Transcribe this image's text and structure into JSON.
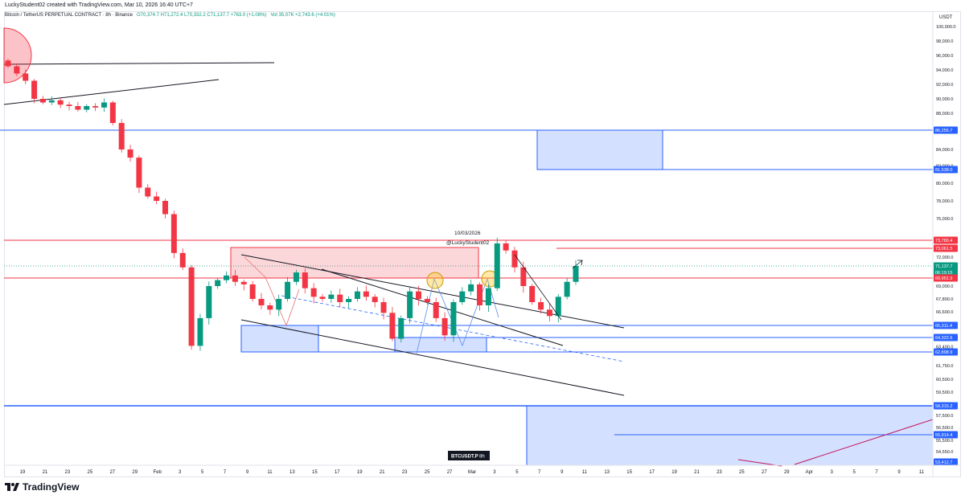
{
  "header": {
    "created_by": "LuckyStudent02 created with TradingView.com, Mar 10, 2026 16:40 UTC+7",
    "symbol_line": "Bitcoin / TetherUS PERPETUAL CONTRACT · 8h · Binance",
    "ohlc": "O70,374.7  H71,272.4  L70,332.2  C71,137.7  +763.0 (+1.08%)",
    "volume": "Vol 35.07K  +2,743.6 (+4.01%)"
  },
  "brand": {
    "name": "TradingView"
  },
  "colors": {
    "up": "#089981",
    "down": "#f23645",
    "blue_line": "#2962ff",
    "red_line": "#f23645",
    "blue_zone": "rgba(41,98,255,0.2)",
    "red_zone": "rgba(242,54,69,0.2)",
    "trend": "#131722",
    "dashed": "#2962ff",
    "label_blue": "#2962ff",
    "label_red": "#f23645"
  },
  "chart_data": {
    "type": "candlestick",
    "price_axis_unit": "USDT",
    "y_ticks": [
      "100,000.0",
      "98,000.0",
      "96,000.0",
      "94,000.0",
      "92,000.0",
      "90,000.0",
      "88,000.0",
      "84,000.0",
      "82,000.0",
      "80,000.0",
      "78,000.0",
      "76,000.0",
      "72,000.0",
      "69,000.0",
      "67,800.0",
      "66,600.0",
      "63,400.0",
      "61,750.0",
      "60,500.0",
      "59,500.0",
      "57,500.0",
      "56,500.0",
      "55,500.0",
      "54,550.0",
      "53,550.0"
    ],
    "x_ticks": [
      "19",
      "21",
      "23",
      "25",
      "27",
      "29",
      "Feb",
      "3",
      "5",
      "7",
      "9",
      "11",
      "13",
      "15",
      "17",
      "19",
      "21",
      "23",
      "25",
      "27",
      "Mar",
      "3",
      "5",
      "7",
      "9",
      "11",
      "13",
      "15",
      "17",
      "19",
      "21",
      "23",
      "25",
      "27",
      "29",
      "Apr",
      "3",
      "5",
      "7",
      "9",
      "11"
    ],
    "price_labels": [
      {
        "text": "86,255.7",
        "kind": "blue"
      },
      {
        "text": "81,538.0",
        "kind": "blue"
      },
      {
        "text": "73,780.4",
        "kind": "red"
      },
      {
        "text": "73,061.5",
        "kind": "red"
      },
      {
        "text": "71,137.7",
        "kind": "current"
      },
      {
        "text": "06:19:15",
        "kind": "countdown"
      },
      {
        "text": "69,951.9",
        "kind": "red"
      },
      {
        "text": "65,311.4",
        "kind": "blue"
      },
      {
        "text": "64,322.6",
        "kind": "blue"
      },
      {
        "text": "62,898.9",
        "kind": "blue"
      },
      {
        "text": "58,315.2",
        "kind": "blue"
      },
      {
        "text": "55,914.4",
        "kind": "blue"
      },
      {
        "text": "53,412.7",
        "kind": "blue"
      }
    ],
    "annotations": {
      "date_label": "10/03/2026",
      "watermark_label": "@LuckyStudent02",
      "symbol_badge": "BTCUSDT.P",
      "interval_badge": "8h"
    },
    "close_path": [
      94500,
      93500,
      92500,
      90000,
      89500,
      89800,
      89200,
      89000,
      88500,
      89000,
      88800,
      89500,
      87000,
      84000,
      83000,
      79500,
      78500,
      78000,
      76500,
      72500,
      71000,
      63500,
      66000,
      69000,
      69700,
      70200,
      69500,
      69200,
      67800,
      67200,
      66800,
      67800,
      69500,
      70500,
      68800,
      68000,
      67800,
      68200,
      67500,
      67800,
      68500,
      68000,
      67500,
      66500,
      64200,
      66000,
      68500,
      67800,
      67500,
      66000,
      64500,
      67500,
      68500,
      69200,
      67200,
      68800,
      73500,
      72800,
      71000,
      69000,
      67500,
      66800,
      66200,
      68000,
      69500,
      71137
    ]
  }
}
